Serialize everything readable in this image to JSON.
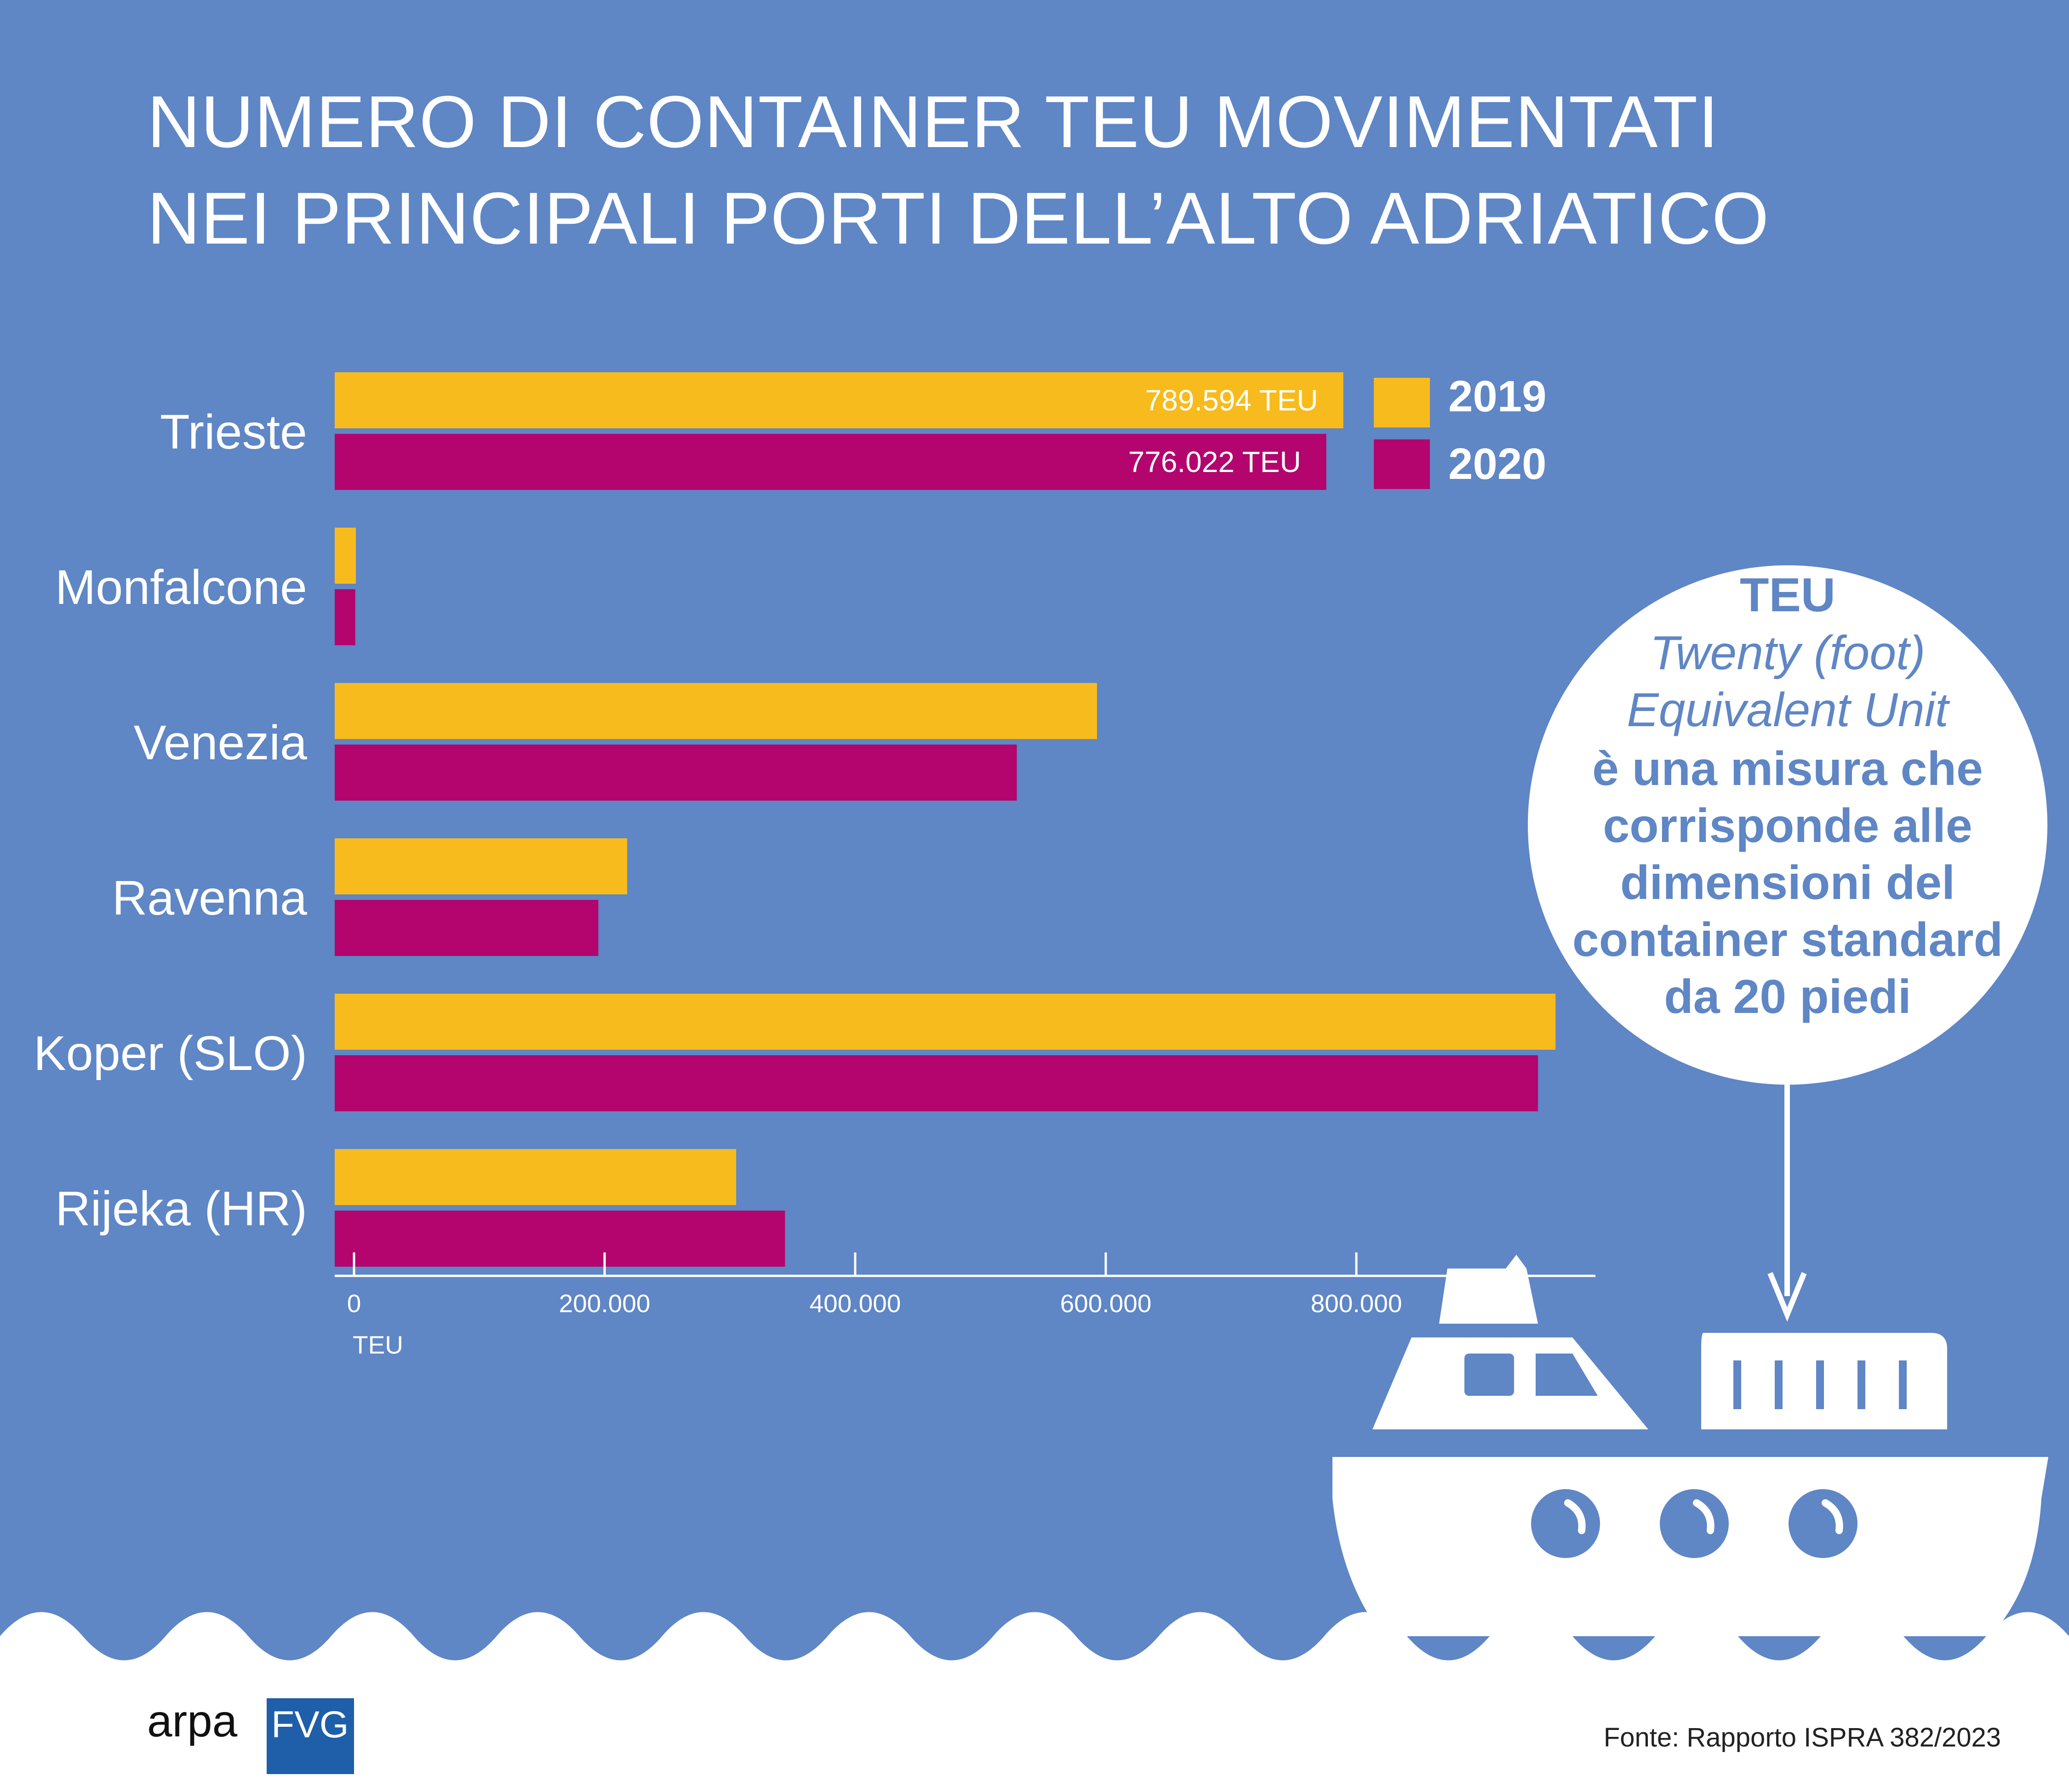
{
  "title": {
    "line1": "NUMERO DI CONTAINER TEU MOVIMENTATI",
    "line2": "NEI PRINCIPALI PORTI DELL’ALTO ADRIATICO"
  },
  "colors": {
    "background": "#5f86c5",
    "series_2019": "#f8bb1d",
    "series_2020": "#b4046e",
    "white": "#ffffff"
  },
  "chart_data": {
    "type": "bar",
    "orientation": "horizontal",
    "categories": [
      "Trieste",
      "Monfalcone",
      "Venezia",
      "Ravenna",
      "Koper (SLO)",
      "Rijeka (HR)"
    ],
    "series": [
      {
        "name": "2019",
        "values": [
          789594,
          1500,
          593000,
          218000,
          959000,
          305000
        ]
      },
      {
        "name": "2020",
        "values": [
          776022,
          1000,
          529000,
          195000,
          945000,
          344000
        ]
      }
    ],
    "data_labels": [
      {
        "category": "Trieste",
        "series": "2019",
        "text": "789.594 TEU"
      },
      {
        "category": "Trieste",
        "series": "2020",
        "text": "776.022 TEU"
      }
    ],
    "x_ticks": [
      "0",
      "200.000",
      "400.000",
      "600.000",
      "800.000"
    ],
    "tick_values": [
      0,
      200000,
      400000,
      600000,
      800000
    ],
    "xlabel": "TEU",
    "xlim": [
      0,
      1000000
    ],
    "legend": {
      "placement": "top-right",
      "entries": [
        "2019",
        "2020"
      ]
    },
    "grid": false
  },
  "info_bubble": {
    "heading": "TEU",
    "italic_lines": [
      "Twenty (foot)",
      "Equivalent Unit"
    ],
    "bold_lines": [
      "è una misura che",
      "corrisponde alle",
      "dimensioni del",
      "container standard",
      "da 20 piedi"
    ]
  },
  "illustration": {
    "icons": [
      "ship-icon",
      "container-icon",
      "arrow-down-icon",
      "waves"
    ]
  },
  "footer": {
    "source": "Fonte: Rapporto ISPRA 382/2023",
    "logo_arpa": "arpa",
    "logo_fvg": "FVG"
  }
}
